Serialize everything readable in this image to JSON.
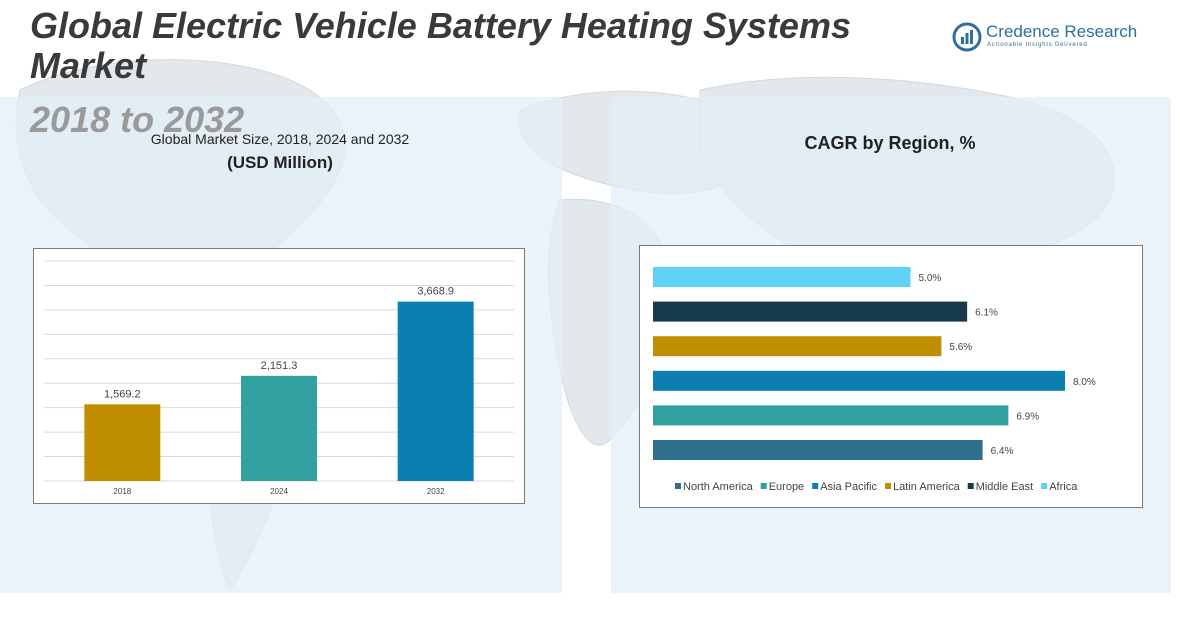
{
  "header": {
    "title": "Global Electric Vehicle Battery Heating Systems Market",
    "subtitle": "2018 to 2032"
  },
  "logo": {
    "name": "Credence Research",
    "tagline": "Actionable Insights Delivered"
  },
  "left_chart": {
    "title": "Global Market Size, 2018, 2024 and 2032",
    "unit": "(USD Million)"
  },
  "right_chart": {
    "title": "CAGR by Region, %"
  },
  "colors": {
    "panel": "#e2eff6",
    "logo_blue": "#2f6f9a",
    "gridline": "#d9d9d9"
  },
  "chart_data": [
    {
      "type": "bar",
      "title": "Global Market Size, 2018, 2024 and 2032",
      "ylabel": "(USD Million)",
      "categories": [
        "2018",
        "2024",
        "2032"
      ],
      "values": [
        1569.2,
        2151.3,
        3668.9
      ],
      "value_labels": [
        "1,569.2",
        "2,151.3",
        "3,668.9"
      ],
      "colors": [
        "#bf8f00",
        "#31a29f",
        "#0a7fb0"
      ],
      "ylim": [
        0,
        4500
      ],
      "grid": true
    },
    {
      "type": "bar",
      "orientation": "horizontal",
      "title": "CAGR by Region, %",
      "categories": [
        "North America",
        "Europe",
        "Asia Pacific",
        "Latin America",
        "Middle East",
        "Africa"
      ],
      "values": [
        6.4,
        6.9,
        8.0,
        5.6,
        6.1,
        5.0
      ],
      "value_labels": [
        "6.4%",
        "6.9%",
        "8.0%",
        "5.6%",
        "6.1%",
        "5.0%"
      ],
      "colors": [
        "#2e6f8e",
        "#31a29f",
        "#0a7fb0",
        "#bf8f00",
        "#163a4a",
        "#5ed1f5"
      ],
      "xlim": [
        0,
        8.0
      ],
      "legend_position": "bottom",
      "grid": false
    }
  ]
}
